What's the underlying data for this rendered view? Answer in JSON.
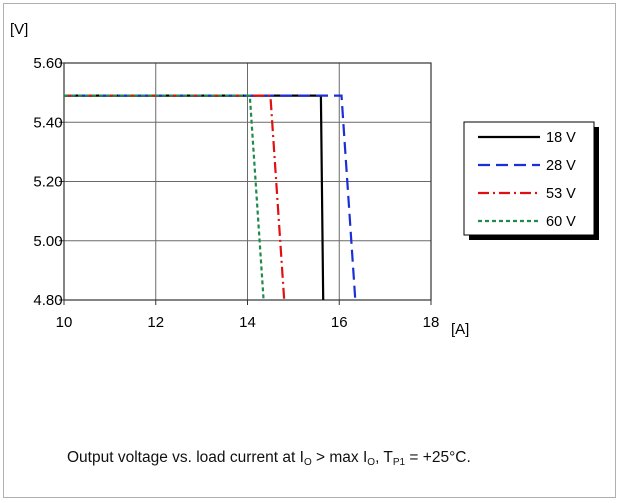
{
  "chart_data": {
    "type": "line",
    "title": "",
    "xlabel": "[A]",
    "ylabel": "[V]",
    "xlim": [
      10,
      18
    ],
    "ylim": [
      4.8,
      5.6
    ],
    "x_ticks": [
      "10",
      "12",
      "14",
      "16",
      "18"
    ],
    "y_ticks": [
      "4.80",
      "5.00",
      "5.20",
      "5.40",
      "5.60"
    ],
    "grid": true,
    "legend_position": "right",
    "series": [
      {
        "name": "18 V",
        "color": "#000000",
        "dash": "solid",
        "x": [
          10,
          15.6,
          15.65
        ],
        "y": [
          5.49,
          5.49,
          4.8
        ]
      },
      {
        "name": "28 V",
        "color": "#1a2fd6",
        "dash": "dashed",
        "x": [
          10,
          16.05,
          16.35
        ],
        "y": [
          5.49,
          5.49,
          4.8
        ]
      },
      {
        "name": "53 V",
        "color": "#e01010",
        "dash": "dashdot",
        "x": [
          10,
          14.5,
          14.8
        ],
        "y": [
          5.49,
          5.49,
          4.8
        ]
      },
      {
        "name": "60 V",
        "color": "#1f8a4c",
        "dash": "dotted",
        "x": [
          10,
          14.05,
          14.35
        ],
        "y": [
          5.49,
          5.49,
          4.8
        ]
      }
    ]
  },
  "caption": {
    "prefix": "Output voltage vs. load current at I",
    "sub1": "O",
    "mid1": " > max I",
    "sub2": "O",
    "mid2": ", T",
    "sub3": "P1",
    "suffix": " = +25°C."
  }
}
